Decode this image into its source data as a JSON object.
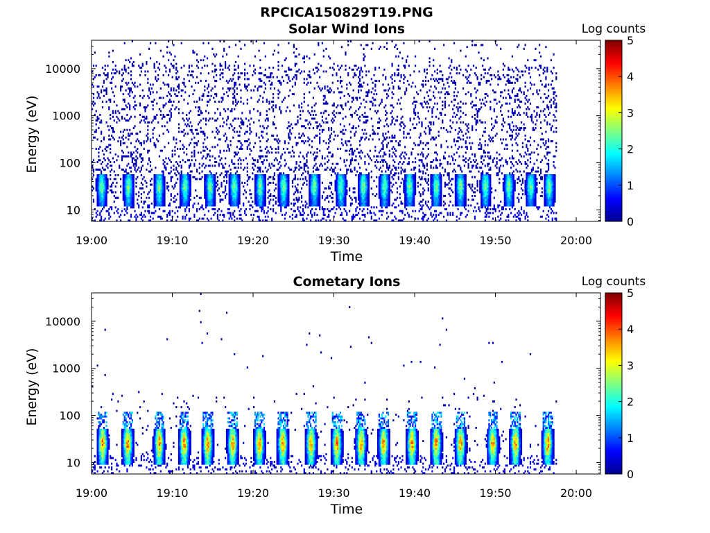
{
  "figure": {
    "title": "RPCICA150829T19.PNG"
  },
  "colormap": {
    "name": "jet",
    "stops": [
      "#00008f",
      "#0000ff",
      "#0080ff",
      "#00ffff",
      "#80ff80",
      "#ffff00",
      "#ff8000",
      "#ff0000",
      "#800000"
    ]
  },
  "chart_data": [
    {
      "type": "heatmap",
      "title": "Solar Wind Ions",
      "xlabel": "Time",
      "ylabel": "Energy (eV)",
      "xlim": [
        "19:00",
        "20:03"
      ],
      "xticks": [
        "19:00",
        "19:10",
        "19:20",
        "19:30",
        "19:40",
        "19:50",
        "20:00"
      ],
      "ylim": [
        5.7,
        40000
      ],
      "yscale": "log",
      "yticks": [
        10,
        100,
        1000,
        10000
      ],
      "yticklabels": [
        "10",
        "100",
        "1000",
        "10000"
      ],
      "colorbar": {
        "label": "Log counts",
        "range": [
          0,
          5
        ],
        "ticks": [
          "0",
          "1",
          "2",
          "3",
          "4",
          "5"
        ]
      },
      "data_end": "19:57.5",
      "pattern": "noise",
      "noise_density": 0.32,
      "burst_times_min": [
        1.2,
        4.5,
        8.3,
        11.5,
        14.6,
        17.6,
        20.8,
        23.7,
        27.5,
        30.8,
        33.6,
        36.2,
        39.3,
        42.6,
        45.6,
        48.7,
        51.6,
        54.3,
        56.6
      ],
      "burst_peak_log_counts": 2.6,
      "burst_energy_ev": [
        22,
        45
      ]
    },
    {
      "type": "heatmap",
      "title": "Cometary Ions",
      "xlabel": "Time",
      "ylabel": "Energy (eV)",
      "xlim": [
        "19:00",
        "20:03"
      ],
      "xticks": [
        "19:00",
        "19:10",
        "19:20",
        "19:30",
        "19:40",
        "19:50",
        "20:00"
      ],
      "ylim": [
        5.7,
        40000
      ],
      "yscale": "log",
      "yticks": [
        10,
        100,
        1000,
        10000
      ],
      "yticklabels": [
        "10",
        "100",
        "1000",
        "10000"
      ],
      "colorbar": {
        "label": "Log counts",
        "range": [
          0,
          5
        ],
        "ticks": [
          "0",
          "1",
          "2",
          "3",
          "4",
          "5"
        ]
      },
      "data_end": "19:57.5",
      "pattern": "sparse",
      "noise_density": 0.012,
      "burst_times_min": [
        1.3,
        4.4,
        8.3,
        11.4,
        14.3,
        17.4,
        20.7,
        23.6,
        27.1,
        30.3,
        33.3,
        36.1,
        39.6,
        42.6,
        45.6,
        49.6,
        52.4,
        56.4
      ],
      "burst_peak_log_counts": 4.0,
      "burst_energy_ev": [
        16,
        40
      ],
      "burst_tail_ev": 120
    }
  ]
}
